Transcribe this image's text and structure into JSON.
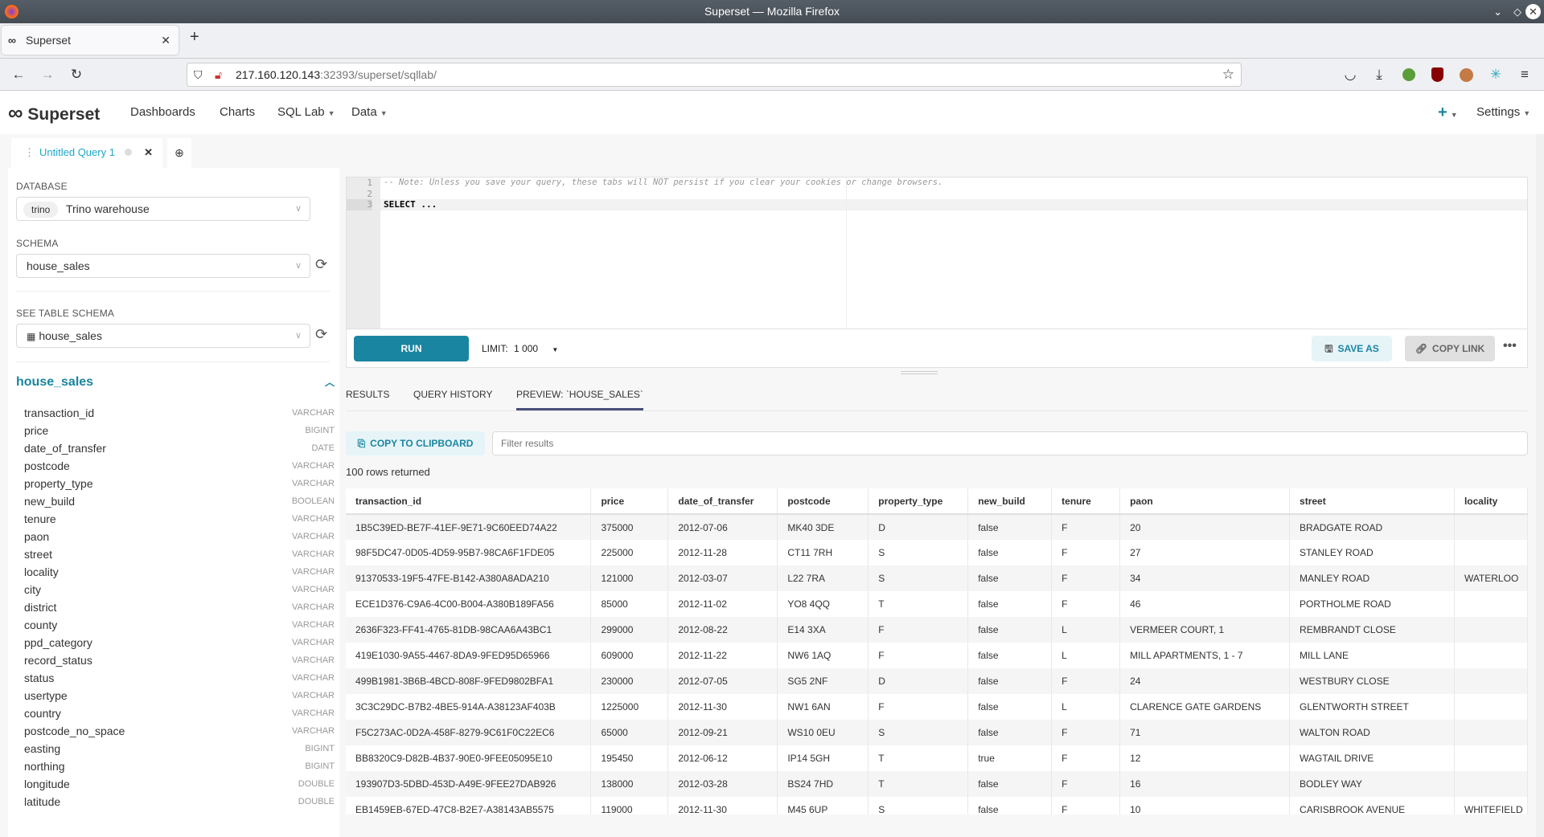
{
  "browser": {
    "window_title": "Superset — Mozilla Firefox",
    "tab_title": "Superset",
    "url_host": "217.160.120.143",
    "url_rest": ":32393/superset/sqllab/"
  },
  "app": {
    "logo": "Superset",
    "nav": [
      "Dashboards",
      "Charts",
      "SQL Lab",
      "Data"
    ],
    "settings": "Settings",
    "accent": "#1a85a0"
  },
  "query_tab": {
    "title": "Untitled Query 1"
  },
  "left": {
    "database_label": "DATABASE",
    "database_badge": "trino",
    "database_value": "Trino warehouse",
    "schema_label": "SCHEMA",
    "schema_value": "house_sales",
    "table_schema_label": "SEE TABLE SCHEMA",
    "table_value": "house_sales",
    "table_heading": "house_sales",
    "columns": [
      [
        "transaction_id",
        "VARCHAR"
      ],
      [
        "price",
        "BIGINT"
      ],
      [
        "date_of_transfer",
        "DATE"
      ],
      [
        "postcode",
        "VARCHAR"
      ],
      [
        "property_type",
        "VARCHAR"
      ],
      [
        "new_build",
        "BOOLEAN"
      ],
      [
        "tenure",
        "VARCHAR"
      ],
      [
        "paon",
        "VARCHAR"
      ],
      [
        "street",
        "VARCHAR"
      ],
      [
        "locality",
        "VARCHAR"
      ],
      [
        "city",
        "VARCHAR"
      ],
      [
        "district",
        "VARCHAR"
      ],
      [
        "county",
        "VARCHAR"
      ],
      [
        "ppd_category",
        "VARCHAR"
      ],
      [
        "record_status",
        "VARCHAR"
      ],
      [
        "status",
        "VARCHAR"
      ],
      [
        "usertype",
        "VARCHAR"
      ],
      [
        "country",
        "VARCHAR"
      ],
      [
        "postcode_no_space",
        "VARCHAR"
      ],
      [
        "easting",
        "BIGINT"
      ],
      [
        "northing",
        "BIGINT"
      ],
      [
        "longitude",
        "DOUBLE"
      ],
      [
        "latitude",
        "DOUBLE"
      ]
    ]
  },
  "editor": {
    "lines": [
      "-- Note: Unless you save your query, these tabs will NOT persist if you clear your cookies or change browsers.",
      "",
      "SELECT ..."
    ],
    "line_numbers": [
      "1",
      "2",
      "3"
    ]
  },
  "toolbar": {
    "run": "RUN",
    "limit_label": "LIMIT:",
    "limit_value": "1 000",
    "save_as": "SAVE AS",
    "copy_link": "COPY LINK"
  },
  "results": {
    "tabs": [
      "RESULTS",
      "QUERY HISTORY",
      "PREVIEW: `HOUSE_SALES`"
    ],
    "active_tab": 2,
    "copy": "COPY TO CLIPBOARD",
    "filter_placeholder": "Filter results",
    "rows_returned": "100 rows returned",
    "columns": [
      "transaction_id",
      "price",
      "date_of_transfer",
      "postcode",
      "property_type",
      "new_build",
      "tenure",
      "paon",
      "street",
      "locality"
    ],
    "rows": [
      [
        "1B5C39ED-BE7F-41EF-9E71-9C60EED74A22",
        "375000",
        "2012-07-06",
        "MK40 3DE",
        "D",
        "false",
        "F",
        "20",
        "BRADGATE ROAD",
        ""
      ],
      [
        "98F5DC47-0D05-4D59-95B7-98CA6F1FDE05",
        "225000",
        "2012-11-28",
        "CT11 7RH",
        "S",
        "false",
        "F",
        "27",
        "STANLEY ROAD",
        ""
      ],
      [
        "91370533-19F5-47FE-B142-A380A8ADA210",
        "121000",
        "2012-03-07",
        "L22 7RA",
        "S",
        "false",
        "F",
        "34",
        "MANLEY ROAD",
        "WATERLOO"
      ],
      [
        "ECE1D376-C9A6-4C00-B004-A380B189FA56",
        "85000",
        "2012-11-02",
        "YO8 4QQ",
        "T",
        "false",
        "F",
        "46",
        "PORTHOLME ROAD",
        ""
      ],
      [
        "2636F323-FF41-4765-81DB-98CAA6A43BC1",
        "299000",
        "2012-08-22",
        "E14 3XA",
        "F",
        "false",
        "L",
        "VERMEER COURT, 1",
        "REMBRANDT CLOSE",
        ""
      ],
      [
        "419E1030-9A55-4467-8DA9-9FED95D65966",
        "609000",
        "2012-11-22",
        "NW6 1AQ",
        "F",
        "false",
        "L",
        "MILL APARTMENTS, 1 - 7",
        "MILL LANE",
        ""
      ],
      [
        "499B1981-3B6B-4BCD-808F-9FED9802BFA1",
        "230000",
        "2012-07-05",
        "SG5 2NF",
        "D",
        "false",
        "F",
        "24",
        "WESTBURY CLOSE",
        ""
      ],
      [
        "3C3C29DC-B7B2-4BE5-914A-A38123AF403B",
        "1225000",
        "2012-11-30",
        "NW1 6AN",
        "F",
        "false",
        "L",
        "CLARENCE GATE GARDENS",
        "GLENTWORTH STREET",
        ""
      ],
      [
        "F5C273AC-0D2A-458F-8279-9C61F0C22EC6",
        "65000",
        "2012-09-21",
        "WS10 0EU",
        "S",
        "false",
        "F",
        "71",
        "WALTON ROAD",
        ""
      ],
      [
        "BB8320C9-D82B-4B37-90E0-9FEE05095E10",
        "195450",
        "2012-06-12",
        "IP14 5GH",
        "T",
        "true",
        "F",
        "12",
        "WAGTAIL DRIVE",
        ""
      ],
      [
        "193907D3-5DBD-453D-A49E-9FEE27DAB926",
        "138000",
        "2012-03-28",
        "BS24 7HD",
        "T",
        "false",
        "F",
        "16",
        "BODLEY WAY",
        ""
      ],
      [
        "EB1459EB-67ED-47C8-B2E7-A38143AB5575",
        "119000",
        "2012-11-30",
        "M45 6UP",
        "S",
        "false",
        "F",
        "10",
        "CARISBROOK AVENUE",
        "WHITEFIELD"
      ]
    ]
  }
}
